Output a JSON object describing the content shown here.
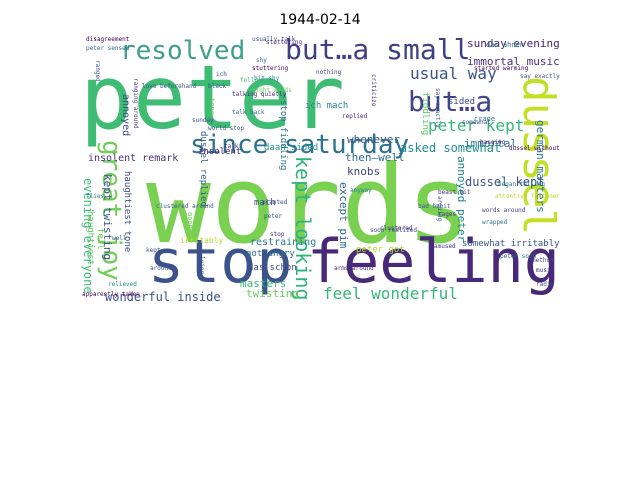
{
  "title": "1944-02-14",
  "words": [
    {
      "t": "peter",
      "c": "#3ebc73"
    },
    {
      "t": "words",
      "c": "#7ad151"
    },
    {
      "t": "feeling",
      "c": "#482878"
    },
    {
      "t": "stop",
      "c": "#3b528b"
    },
    {
      "t": "dussel",
      "c": "#c2df23"
    },
    {
      "t": "since saturday",
      "c": "#2c728e"
    },
    {
      "t": "resolved",
      "c": "#3e9f8b"
    },
    {
      "t": "but…a small",
      "c": "#3f3f86"
    },
    {
      "t": "but…a",
      "c": "#414487"
    },
    {
      "t": "great joy",
      "c": "#6ece58"
    },
    {
      "t": "feel wonderful",
      "c": "#35b779"
    },
    {
      "t": "kept looking",
      "c": "#2fb47c"
    },
    {
      "t": "peter kept",
      "c": "#35b779"
    },
    {
      "t": "usual way",
      "c": "#3b528b"
    },
    {
      "t": "immortal music",
      "c": "#46327e"
    },
    {
      "t": "sunday evening",
      "c": "#482475"
    },
    {
      "t": "evening everyone",
      "c": "#3aba76"
    },
    {
      "t": "kept twisting",
      "c": "#3b528b"
    },
    {
      "t": "wonderful inside",
      "c": "#3b528b"
    },
    {
      "t": "annoyed peter",
      "c": "#24868e"
    },
    {
      "t": "except pim",
      "c": "#31688e"
    },
    {
      "t": "german masters",
      "c": "#2a788e"
    },
    {
      "t": "dussel kept",
      "c": "#3b528b"
    },
    {
      "t": "asked somewhat",
      "c": "#21918c"
    },
    {
      "t": "immortal",
      "c": "#2a788e"
    },
    {
      "t": "whenever",
      "c": "#39568c"
    },
    {
      "t": "then—well",
      "c": "#2d708e"
    },
    {
      "t": "insolent remark",
      "c": "#46337f"
    },
    {
      "t": "annoyed",
      "c": "#404688"
    },
    {
      "t": "haughtiest tone",
      "c": "#3d4d8a"
    },
    {
      "t": "knobs",
      "c": "#414487"
    },
    {
      "t": "dussel replied",
      "c": "#34618d"
    },
    {
      "t": "stop fiddling",
      "c": "#2c728e"
    },
    {
      "t": "ich mach",
      "c": "#24878e"
    },
    {
      "t": "fiddling",
      "c": "#5ec962"
    },
    {
      "t": "daan sided",
      "c": "#21918c"
    },
    {
      "t": "masters",
      "c": "#3aba76"
    },
    {
      "t": "twisting",
      "c": "#6ccd5a"
    },
    {
      "t": "restraining",
      "c": "#287c8e"
    },
    {
      "t": "got angry",
      "c": "#2e6f8e"
    },
    {
      "t": "das schon",
      "c": "#3e4a89"
    },
    {
      "t": "peter got",
      "c": "#b5de2b"
    },
    {
      "t": "somewhat irritably",
      "c": "#3b528b"
    },
    {
      "t": "haughtiest",
      "c": "#5ec962"
    },
    {
      "t": "irritably",
      "c": "#b8de29"
    },
    {
      "t": "mach",
      "c": "#3b528b"
    },
    {
      "t": "sided",
      "c": "#3e4a89"
    },
    {
      "t": "insolent",
      "c": "#482878"
    },
    {
      "t": "fell",
      "c": "#6ece58"
    },
    {
      "t": "disagreement",
      "c": "#440154"
    },
    {
      "t": "peter sensed",
      "c": "#31688e"
    },
    {
      "t": "ich",
      "c": "#3b528b"
    },
    {
      "t": "black",
      "c": "#3b528b"
    },
    {
      "t": "replied",
      "c": "#482878"
    },
    {
      "t": "nothing",
      "c": "#3e4a89"
    },
    {
      "t": "ranged",
      "c": "#3b528b"
    },
    {
      "t": "tone",
      "c": "#5ec962"
    },
    {
      "t": "usually talk",
      "c": "#3b528b"
    },
    {
      "t": "bit shy",
      "c": "#2a788e"
    },
    {
      "t": "criticize",
      "c": "#482878"
    },
    {
      "t": "right words",
      "c": "#6ece58"
    },
    {
      "t": "say exactly",
      "c": "#3b528b"
    },
    {
      "t": "attentive listener",
      "c": "#b5de2b"
    },
    {
      "t": "began telling",
      "c": "#2a788e"
    },
    {
      "t": "words around",
      "c": "#414487"
    },
    {
      "t": "clustered around",
      "c": "#3b528b"
    },
    {
      "t": "apparently taken",
      "c": "#440154"
    },
    {
      "t": "peter soon",
      "c": "#31688e"
    },
    {
      "t": "music",
      "c": "#46327e"
    },
    {
      "t": "method",
      "c": "#3e4a89"
    },
    {
      "t": "radio",
      "c": "#39568c"
    },
    {
      "t": "bad habit",
      "c": "#3b528b"
    },
    {
      "t": "clustered",
      "c": "#482878"
    },
    {
      "t": "rages",
      "c": "#443983"
    },
    {
      "t": "lying",
      "c": "#3b528b"
    },
    {
      "t": "flies",
      "c": "#2a788e"
    },
    {
      "t": "well",
      "c": "#3b528b"
    },
    {
      "t": "arms around",
      "c": "#482878"
    },
    {
      "t": "good",
      "c": "#6ece58"
    },
    {
      "t": "somewhat",
      "c": "#3b528b"
    },
    {
      "t": "wrapped",
      "c": "#2a788e"
    },
    {
      "t": "started warming",
      "c": "#440154"
    },
    {
      "t": "beast bit",
      "c": "#443983"
    },
    {
      "t": "arguing",
      "c": "#3b528b"
    },
    {
      "t": "hanging",
      "c": "#482878"
    },
    {
      "t": "relieved",
      "c": "#21918c"
    },
    {
      "t": "soon realized",
      "c": "#3e4a89"
    },
    {
      "t": "das ahnen",
      "c": "#2a788e"
    },
    {
      "t": "following",
      "c": "#35b779"
    },
    {
      "t": "talking quietly",
      "c": "#482878"
    },
    {
      "t": "love beforehand",
      "c": "#3b528b"
    },
    {
      "t": "ranging around",
      "c": "#443983"
    },
    {
      "t": "talk back",
      "c": "#31688e"
    },
    {
      "t": "sunday",
      "c": "#3e4a89"
    },
    {
      "t": "world stop",
      "c": "#3b528b"
    },
    {
      "t": "stuttering",
      "c": "#482878"
    },
    {
      "t": "say exactly",
      "c": "#3b528b"
    },
    {
      "t": "dussel without",
      "c": "#440154"
    },
    {
      "t": "anyway",
      "c": "#2a788e"
    },
    {
      "t": "peter",
      "c": "#3b528b"
    },
    {
      "t": "planted",
      "c": "#3e4a89"
    },
    {
      "t": "talk",
      "c": "#482878"
    },
    {
      "t": "shy",
      "c": "#31688e"
    },
    {
      "t": "stuttering",
      "c": "#440154"
    },
    {
      "t": "amused",
      "c": "#443983"
    },
    {
      "t": "crane",
      "c": "#2a788e"
    },
    {
      "t": "kept",
      "c": "#3b528b"
    },
    {
      "t": "around",
      "c": "#3e4a89"
    },
    {
      "t": "stop",
      "c": "#482878"
    }
  ]
}
